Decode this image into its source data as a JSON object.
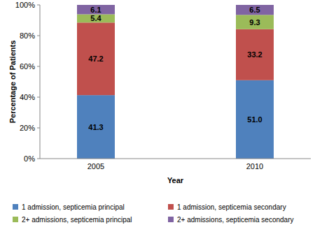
{
  "chart_data": {
    "type": "bar",
    "stacked": true,
    "data_labels": true,
    "x_label": "Year",
    "y_label": "Percentage of Patients",
    "categories": [
      "2005",
      "2010"
    ],
    "series": [
      {
        "name": "1 admission, septicemia principal",
        "color": "#4f81bd",
        "values": [
          41.3,
          51.0
        ],
        "value_labels": [
          "41.3",
          "51.0"
        ]
      },
      {
        "name": "1 admission, septicemia secondary",
        "color": "#c0504d",
        "values": [
          47.2,
          33.2
        ]
      },
      {
        "name": "2+ admissions, septicemia principal",
        "color": "#9bbb59",
        "values": [
          5.4,
          9.3
        ]
      },
      {
        "name": "2+ admissions, septicemia secondary",
        "color": "#8064a2",
        "values": [
          6.1,
          6.5
        ]
      }
    ],
    "ylim": [
      0,
      100
    ],
    "yticks": [
      {
        "value": 0,
        "label": "0%"
      },
      {
        "value": 20,
        "label": "20%"
      },
      {
        "value": 40,
        "label": "40%"
      },
      {
        "value": 60,
        "label": "60%"
      },
      {
        "value": 80,
        "label": "80%"
      },
      {
        "value": 100,
        "label": "100%"
      }
    ],
    "grid": false,
    "legend": "bottom"
  }
}
